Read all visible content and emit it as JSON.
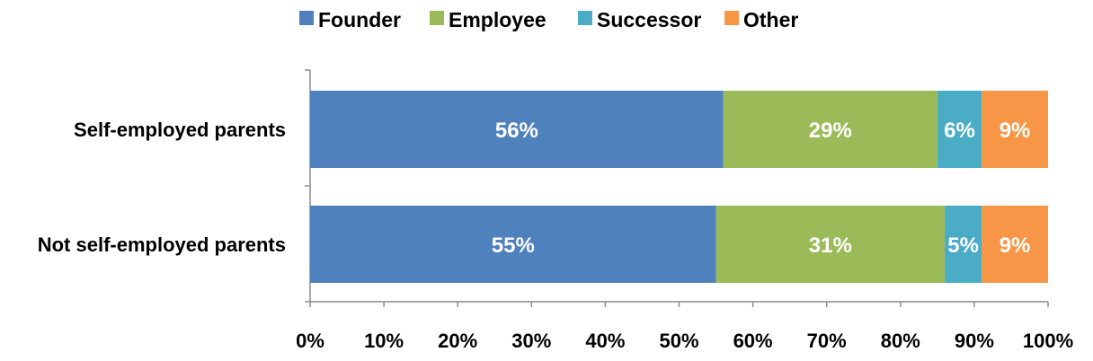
{
  "chart_data": {
    "type": "bar",
    "orientation": "horizontal",
    "stacked": true,
    "title": "",
    "xlabel": "",
    "ylabel": "",
    "xlim": [
      0,
      100
    ],
    "x_ticks": [
      "0%",
      "10%",
      "20%",
      "30%",
      "40%",
      "50%",
      "60%",
      "70%",
      "80%",
      "90%",
      "100%"
    ],
    "categories": [
      "Self-employed parents",
      "Not self-employed parents"
    ],
    "series": [
      {
        "name": "Founder",
        "color": "#4f81bd",
        "values": [
          56,
          55
        ],
        "labels": [
          "56%",
          "55%"
        ]
      },
      {
        "name": "Employee",
        "color": "#9bbb59",
        "values": [
          29,
          31
        ],
        "labels": [
          "29%",
          "31%"
        ]
      },
      {
        "name": "Successor",
        "color": "#4bacc6",
        "values": [
          6,
          5
        ],
        "labels": [
          "6%",
          "5%"
        ]
      },
      {
        "name": "Other",
        "color": "#f79646",
        "values": [
          9,
          9
        ],
        "labels": [
          "9%",
          "9%"
        ]
      }
    ],
    "legend_position": "top",
    "grid": false
  }
}
